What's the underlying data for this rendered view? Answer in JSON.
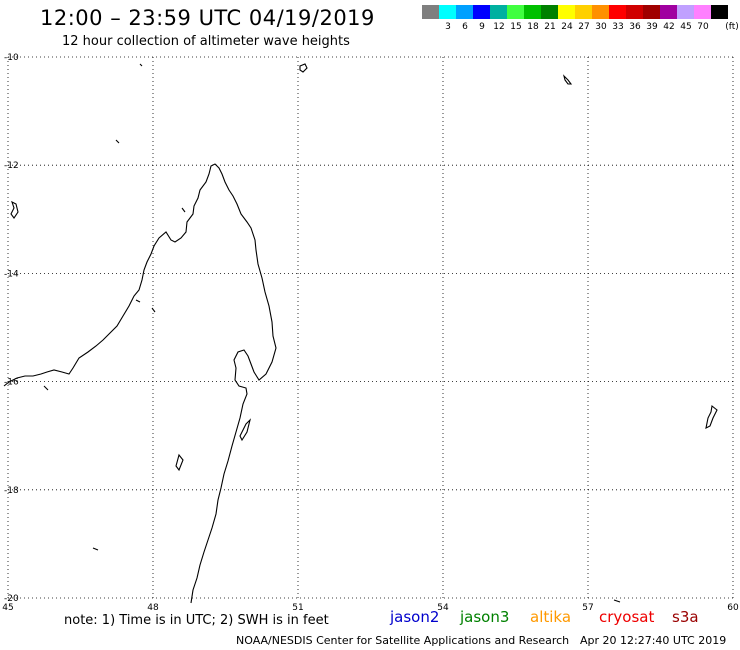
{
  "header": {
    "title": "12:00 – 23:59 UTC 04/19/2019",
    "subtitle": "12 hour collection of altimeter wave heights"
  },
  "colorbar": {
    "unit": "(ft)",
    "swatches": [
      {
        "label": "",
        "color": "#7f7f7f"
      },
      {
        "label": "3",
        "color": "#00ffff"
      },
      {
        "label": "6",
        "color": "#00a0ff"
      },
      {
        "label": "9",
        "color": "#0000ff"
      },
      {
        "label": "12",
        "color": "#00b0a0"
      },
      {
        "label": "15",
        "color": "#40ff40"
      },
      {
        "label": "18",
        "color": "#00c000"
      },
      {
        "label": "21",
        "color": "#008000"
      },
      {
        "label": "24",
        "color": "#ffff00"
      },
      {
        "label": "27",
        "color": "#ffd000"
      },
      {
        "label": "30",
        "color": "#ff9000"
      },
      {
        "label": "33",
        "color": "#ff0000"
      },
      {
        "label": "36",
        "color": "#d00000"
      },
      {
        "label": "39",
        "color": "#a00000"
      },
      {
        "label": "42",
        "color": "#a000a0"
      },
      {
        "label": "45",
        "color": "#c0a0ff"
      },
      {
        "label": "70",
        "color": "#ff80ff"
      },
      {
        "label": "",
        "color": "#000000"
      }
    ]
  },
  "map": {
    "lon_range": [
      45,
      60
    ],
    "lat_range": [
      -20,
      -10
    ],
    "lon_ticks": [
      "45",
      "48",
      "51",
      "54",
      "57",
      "60"
    ],
    "lat_ticks": [
      "-10",
      "-12",
      "-14",
      "-16",
      "-18",
      "-20"
    ],
    "grid": "dotted"
  },
  "footer": {
    "note": "note:  1) Time is in UTC;  2) SWH is in feet",
    "satellites": [
      {
        "name": "jason2",
        "color": "#0000cc"
      },
      {
        "name": "jason3",
        "color": "#008000"
      },
      {
        "name": "altika",
        "color": "#ff9900"
      },
      {
        "name": "cryosat",
        "color": "#ee0000"
      },
      {
        "name": "s3a",
        "color": "#990000"
      }
    ],
    "credit": "NOAA/NESDIS Center for Satellite Applications and Research",
    "timestamp": "Apr 20 12:27:40 UTC 2019"
  }
}
